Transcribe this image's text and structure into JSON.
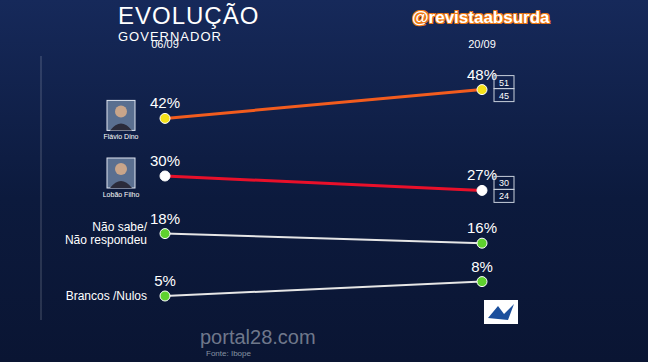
{
  "chart_data": {
    "type": "line",
    "title": "EVOLUÇÃO",
    "subtitle": "GOVERNADOR",
    "categories": [
      "06/09",
      "20/09"
    ],
    "series": [
      {
        "name": "Flávio Dino",
        "color": "#f25c1e",
        "values": [
          42,
          48
        ],
        "value_labels": [
          "42%",
          "48%"
        ],
        "interval_high": [
          null,
          51
        ],
        "interval_low": [
          null,
          45
        ]
      },
      {
        "name": "Lobão Filho",
        "color": "#e8102a",
        "values": [
          30,
          27
        ],
        "value_labels": [
          "30%",
          "27%"
        ],
        "interval_high": [
          null,
          30
        ],
        "interval_low": [
          null,
          24
        ]
      },
      {
        "name": "Não sabe/ Não respondeu",
        "color": "#e6e6e6",
        "values": [
          18,
          16
        ],
        "value_labels": [
          "18%",
          "16%"
        ]
      },
      {
        "name": "Brancos /Nulos",
        "color": "#e6e6e6",
        "values": [
          5,
          8
        ],
        "value_labels": [
          "5%",
          "8%"
        ]
      }
    ],
    "ylim": [
      0,
      55
    ],
    "yticks": [],
    "tick_labels": "x",
    "data_labels": true,
    "marker": "circle",
    "annotations": [
      "@revistaabsurda",
      "portal28.com",
      "Fonte: Ibope"
    ]
  }
}
